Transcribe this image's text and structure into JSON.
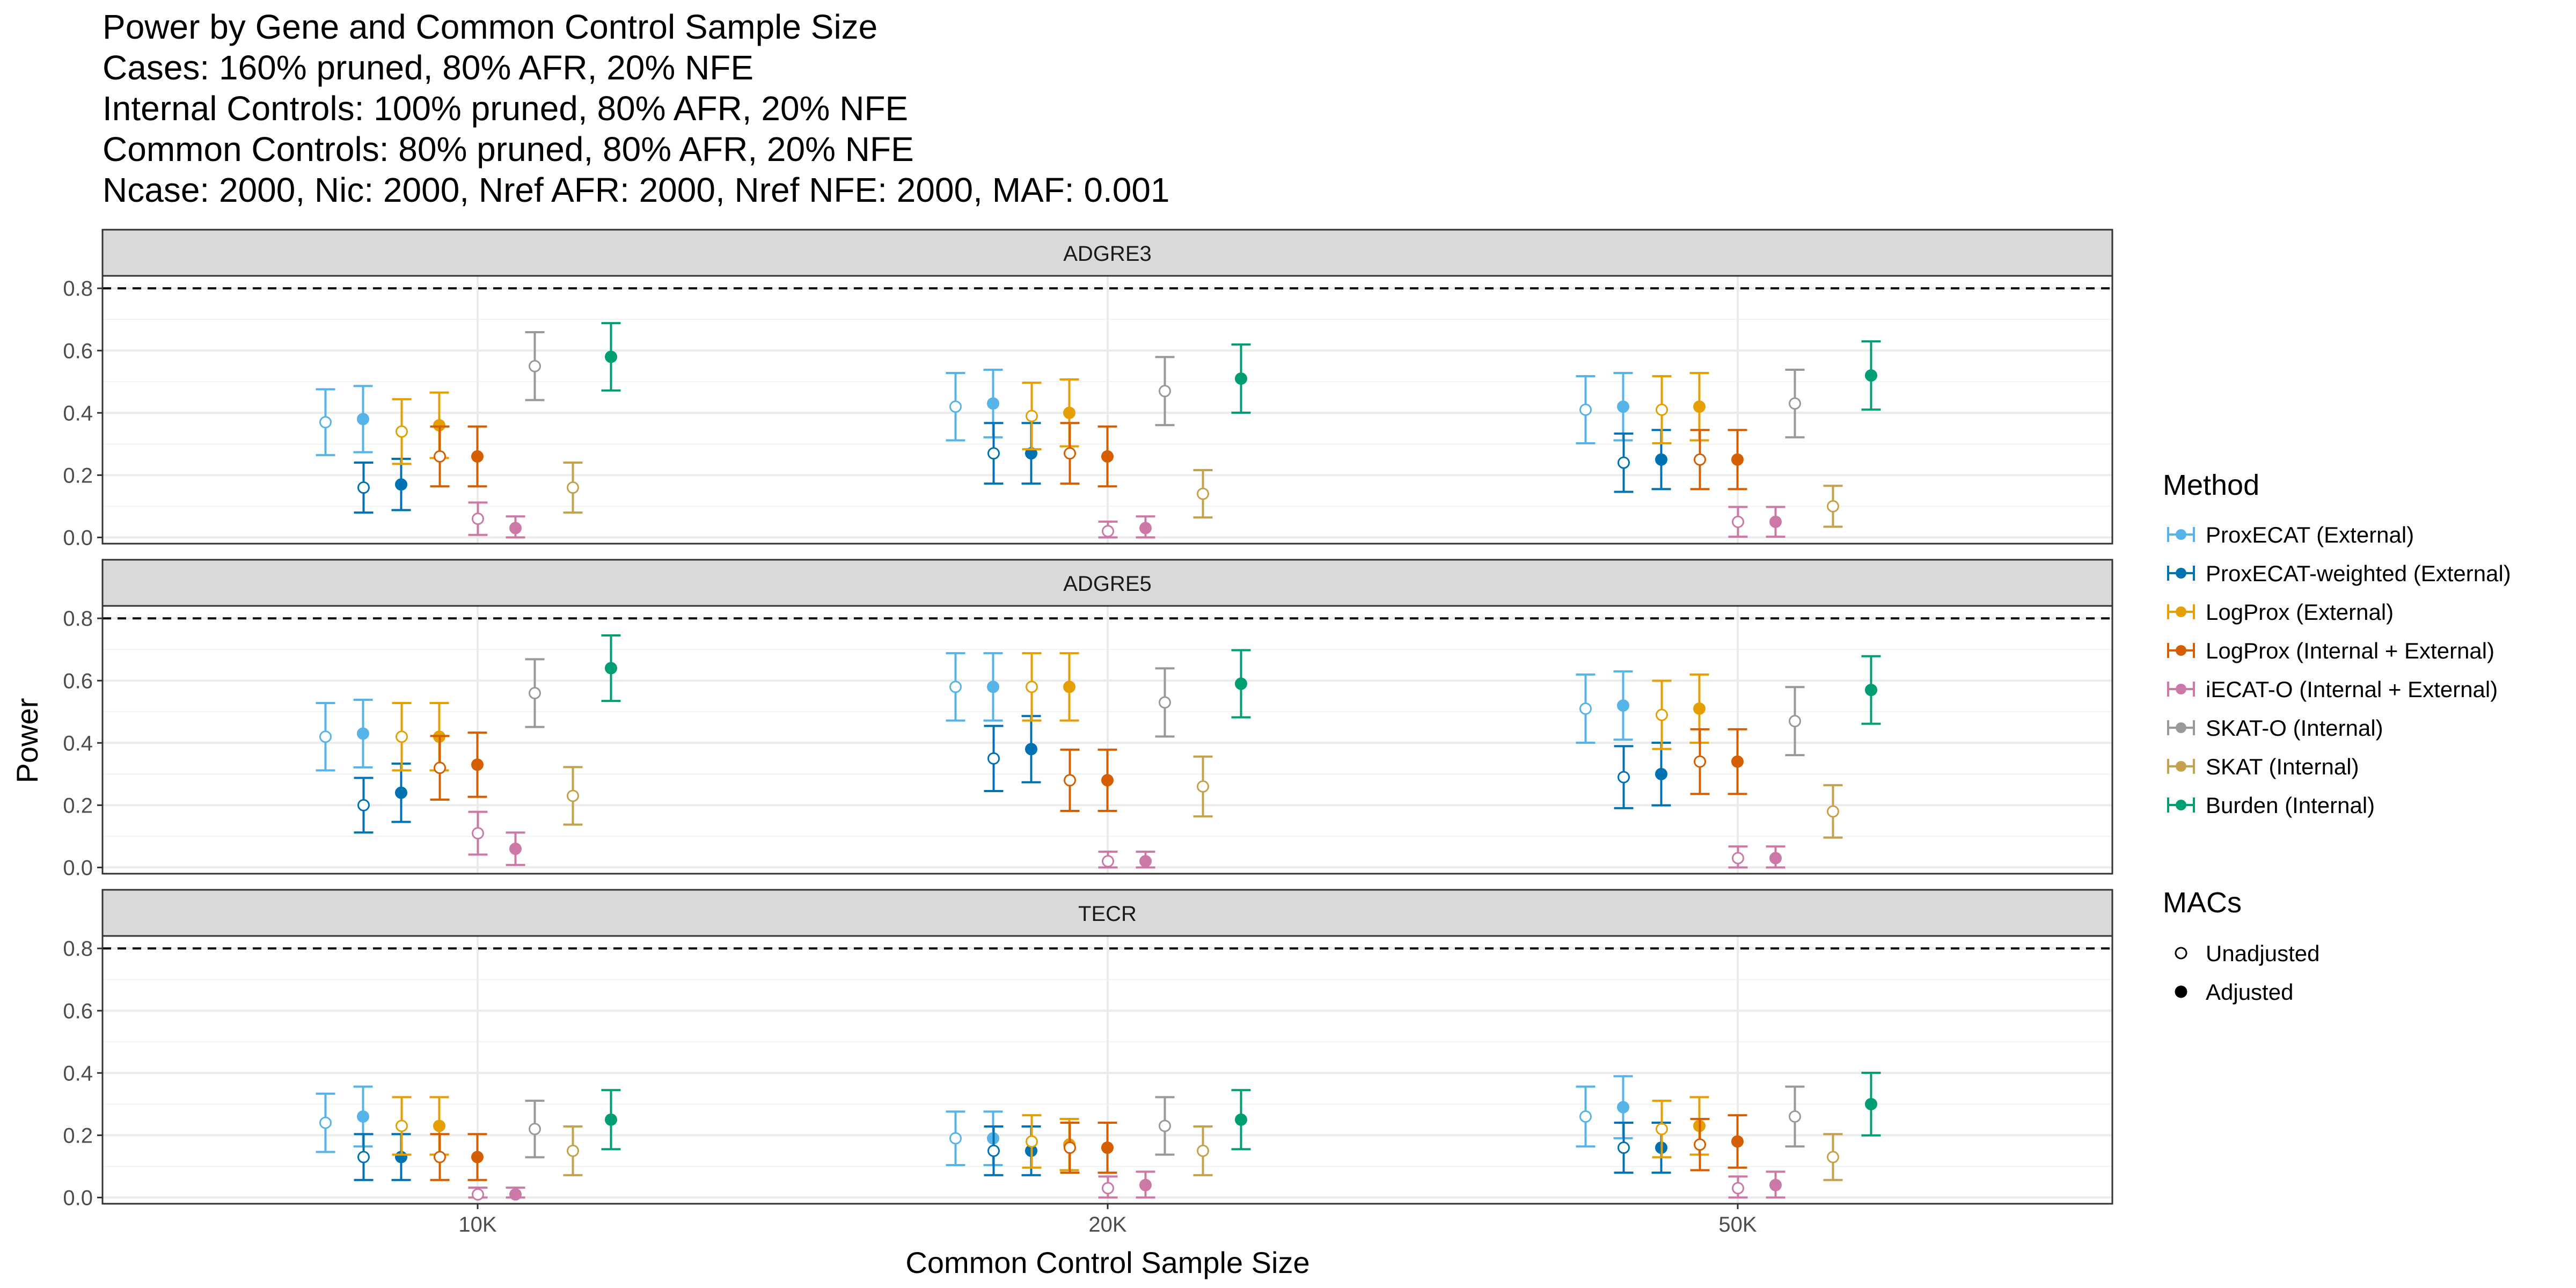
{
  "chart_data": {
    "type": "errorbar",
    "title_lines": [
      "Power by Gene and Common Control Sample Size",
      "Cases: 160% pruned, 80% AFR, 20% NFE",
      "Internal Controls: 100% pruned, 80% AFR, 20% NFE",
      "Common Controls: 80% pruned, 80% AFR, 20% NFE",
      "Ncase: 2000, Nic: 2000, Nref AFR: 2000, Nref NFE: 2000, MAF: 0.001"
    ],
    "xlabel": "Common Control Sample Size",
    "ylabel": "Power",
    "categories": [
      "10K",
      "20K",
      "50K"
    ],
    "ylim": [
      -0.02,
      0.84
    ],
    "yticks": [
      0.0,
      0.2,
      0.4,
      0.6,
      0.8
    ],
    "ytick_labels": [
      "0.0",
      "0.2",
      "0.4",
      "0.6",
      "0.8"
    ],
    "reference_line": 0.8,
    "methods": [
      {
        "name": "ProxECAT (External)",
        "color": "#56B4E9"
      },
      {
        "name": "ProxECAT-weighted (External)",
        "color": "#0072B2"
      },
      {
        "name": "LogProx (External)",
        "color": "#E69F00"
      },
      {
        "name": "LogProx (Internal + External)",
        "color": "#D55E00"
      },
      {
        "name": "iECAT-O (Internal + External)",
        "color": "#CC79A7"
      },
      {
        "name": "SKAT-O (Internal)",
        "color": "#999999"
      },
      {
        "name": "SKAT (Internal)",
        "color": "#C4A14F"
      },
      {
        "name": "Burden (Internal)",
        "color": "#009E73"
      }
    ],
    "macs": [
      "Unadjusted",
      "Adjusted"
    ],
    "legend": {
      "title_method": "Method",
      "title_macs": "MACs",
      "position": "right"
    },
    "panels": [
      {
        "gene": "ADGRE3",
        "values": [
          [
            [
              0.37,
              0.38
            ],
            [
              0.16,
              0.17
            ],
            [
              0.34,
              0.36
            ],
            [
              0.26,
              0.26
            ],
            [
              0.06,
              0.03
            ],
            [
              0.55,
              null
            ],
            [
              0.16,
              null
            ],
            [
              null,
              0.58
            ]
          ],
          [
            [
              0.42,
              0.43
            ],
            [
              0.27,
              0.27
            ],
            [
              0.39,
              0.4
            ],
            [
              0.27,
              0.26
            ],
            [
              0.02,
              0.03
            ],
            [
              0.47,
              null
            ],
            [
              0.14,
              null
            ],
            [
              null,
              0.51
            ]
          ],
          [
            [
              0.41,
              0.42
            ],
            [
              0.24,
              0.25
            ],
            [
              0.41,
              0.42
            ],
            [
              0.25,
              0.25
            ],
            [
              0.05,
              0.05
            ],
            [
              0.43,
              null
            ],
            [
              0.1,
              null
            ],
            [
              null,
              0.52
            ]
          ]
        ]
      },
      {
        "gene": "ADGRE5",
        "values": [
          [
            [
              0.42,
              0.43
            ],
            [
              0.2,
              0.24
            ],
            [
              0.42,
              0.42
            ],
            [
              0.32,
              0.33
            ],
            [
              0.11,
              0.06
            ],
            [
              0.56,
              null
            ],
            [
              0.23,
              null
            ],
            [
              null,
              0.64
            ]
          ],
          [
            [
              0.58,
              0.58
            ],
            [
              0.35,
              0.38
            ],
            [
              0.58,
              0.58
            ],
            [
              0.28,
              0.28
            ],
            [
              0.02,
              0.02
            ],
            [
              0.53,
              null
            ],
            [
              0.26,
              null
            ],
            [
              null,
              0.59
            ]
          ],
          [
            [
              0.51,
              0.52
            ],
            [
              0.29,
              0.3
            ],
            [
              0.49,
              0.51
            ],
            [
              0.34,
              0.34
            ],
            [
              0.03,
              0.03
            ],
            [
              0.47,
              null
            ],
            [
              0.18,
              null
            ],
            [
              null,
              0.57
            ]
          ]
        ]
      },
      {
        "gene": "TECR",
        "values": [
          [
            [
              0.24,
              0.26
            ],
            [
              0.13,
              0.13
            ],
            [
              0.23,
              0.23
            ],
            [
              0.13,
              0.13
            ],
            [
              0.01,
              0.01
            ],
            [
              0.22,
              null
            ],
            [
              0.15,
              null
            ],
            [
              null,
              0.25
            ]
          ],
          [
            [
              0.19,
              0.19
            ],
            [
              0.15,
              0.15
            ],
            [
              0.18,
              0.17
            ],
            [
              0.16,
              0.16
            ],
            [
              0.03,
              0.04
            ],
            [
              0.23,
              null
            ],
            [
              0.15,
              null
            ],
            [
              null,
              0.25
            ]
          ],
          [
            [
              0.26,
              0.29
            ],
            [
              0.16,
              0.16
            ],
            [
              0.22,
              0.23
            ],
            [
              0.17,
              0.18
            ],
            [
              0.03,
              0.04
            ],
            [
              0.26,
              null
            ],
            [
              0.13,
              null
            ],
            [
              null,
              0.3
            ]
          ]
        ]
      }
    ]
  }
}
